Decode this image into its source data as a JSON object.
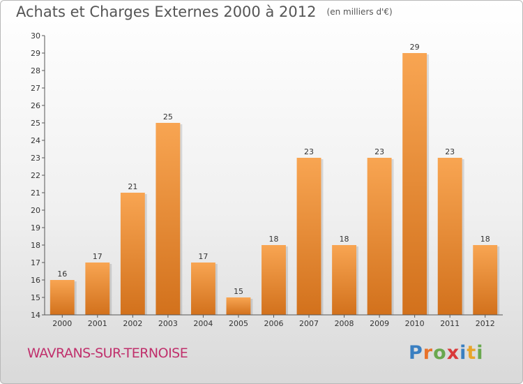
{
  "title": "Achats et Charges Externes 2000 à 2012",
  "unit": "(en milliers d'€)",
  "commune": "WAVRANS-SUR-TERNOISE",
  "logo": {
    "letters": [
      "P",
      "r",
      "o",
      "x",
      "i",
      "t",
      "i"
    ],
    "colors": [
      "#3a7fc1",
      "#e8722a",
      "#6aa84f",
      "#d93a3a",
      "#3a7fc1",
      "#e8a52a",
      "#6aa84f"
    ]
  },
  "colors": {
    "bar_top": "#f8a552",
    "bar_bottom": "#d2711c",
    "commune": "#c0306c"
  },
  "chart_data": {
    "type": "bar",
    "title": "Achats et Charges Externes 2000 à 2012",
    "categories": [
      "2000",
      "2001",
      "2002",
      "2003",
      "2004",
      "2005",
      "2006",
      "2007",
      "2008",
      "2009",
      "2010",
      "2011",
      "2012"
    ],
    "values": [
      16,
      17,
      21,
      25,
      17,
      15,
      18,
      23,
      18,
      23,
      29,
      23,
      18
    ],
    "ylim": [
      14,
      30
    ],
    "yticks": [
      14,
      15,
      16,
      17,
      18,
      19,
      20,
      21,
      22,
      23,
      24,
      25,
      26,
      27,
      28,
      29,
      30
    ],
    "grid": false,
    "data_labels": true
  }
}
